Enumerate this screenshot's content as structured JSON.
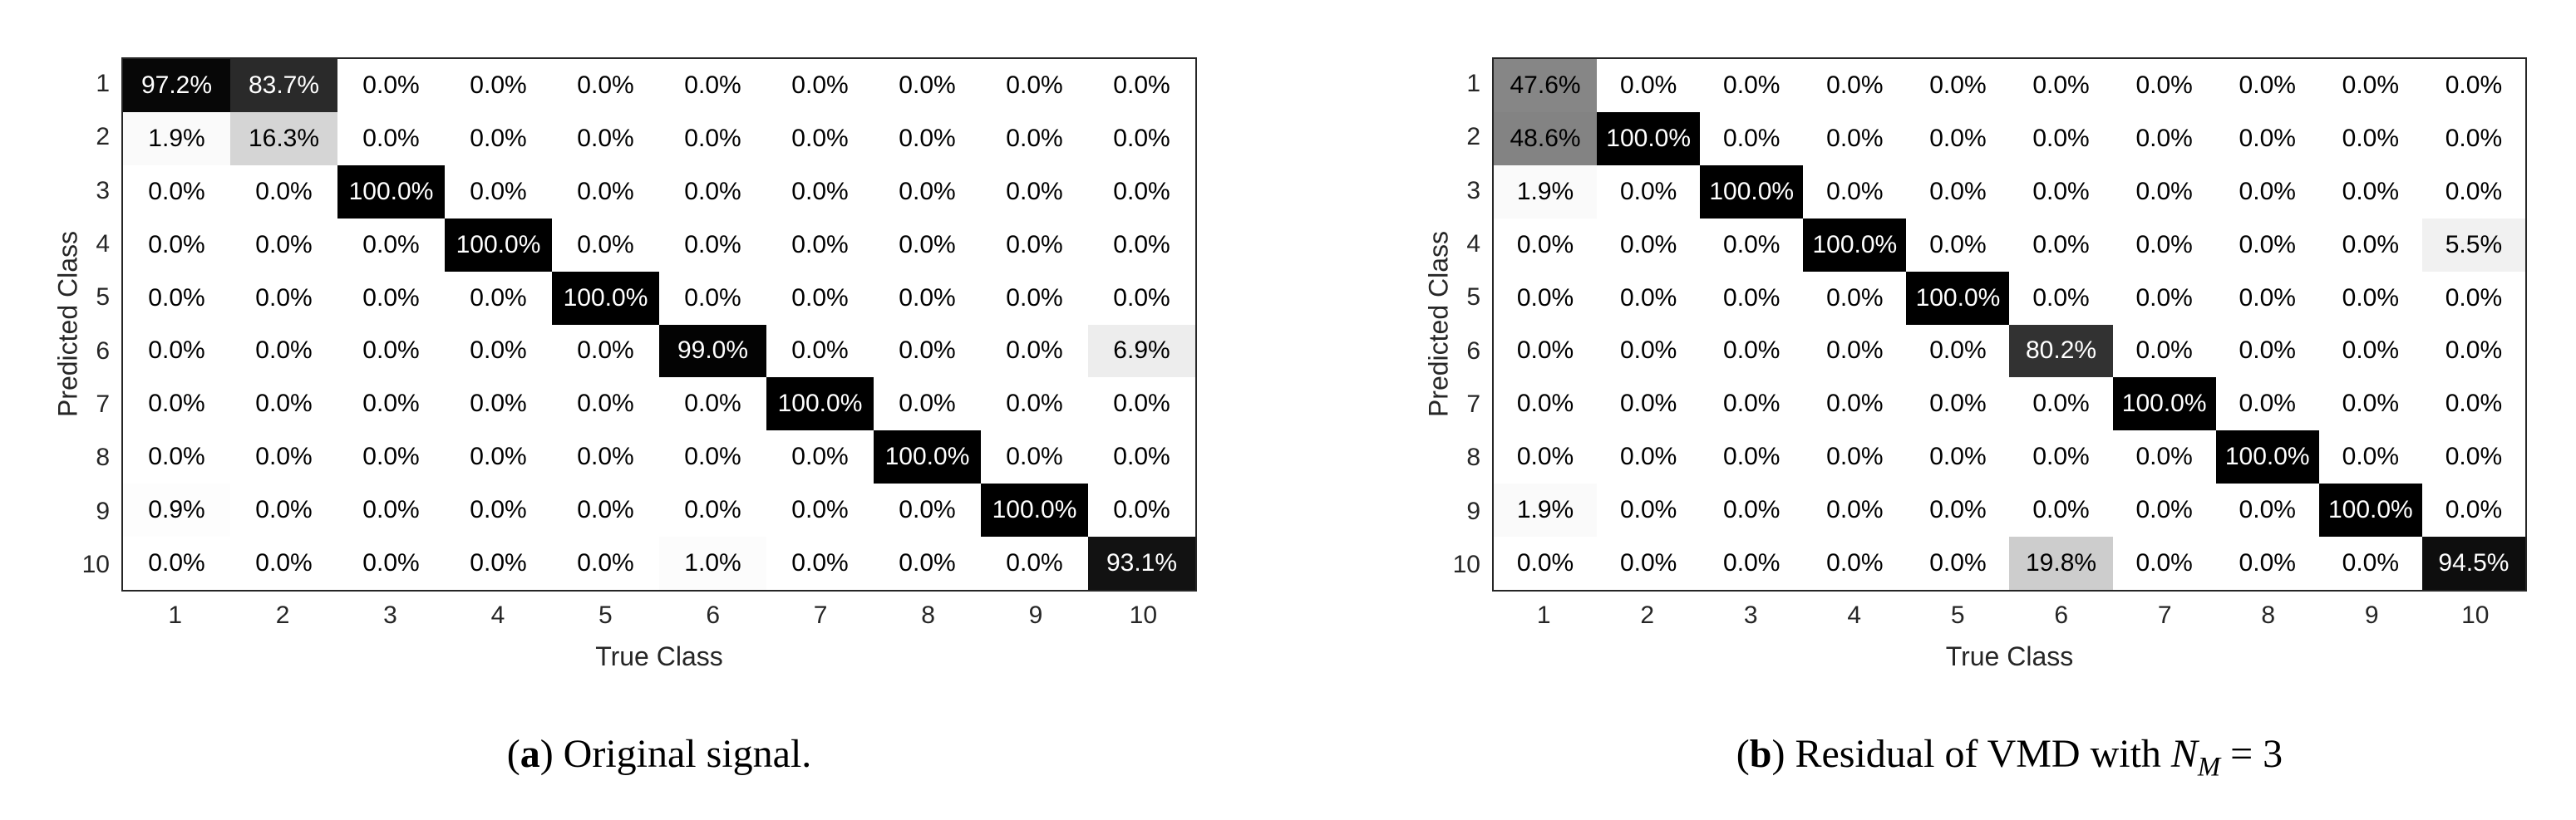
{
  "page": {
    "background": "#ffffff",
    "text_color": "#262626",
    "axes_border_color": "#262626"
  },
  "panels": [
    {
      "id": "a",
      "caption": {
        "paren_open": "(",
        "label": "a",
        "paren_close": ")",
        "text": " Original signal.",
        "math_var": "",
        "math_sub": "",
        "math_tail": ""
      }
    },
    {
      "id": "b",
      "caption": {
        "paren_open": "(",
        "label": "b",
        "paren_close": ")",
        "text": " Residual of VMD with ",
        "math_var": "N",
        "math_sub": "M",
        "math_tail": " = 3"
      }
    }
  ],
  "chart_data": [
    {
      "type": "heatmap",
      "subtype": "confusion-matrix",
      "caption": "(a) Original signal.",
      "xlabel": "True Class",
      "ylabel": "Predicted Class",
      "x_ticks": [
        "1",
        "2",
        "3",
        "4",
        "5",
        "6",
        "7",
        "8",
        "9",
        "10"
      ],
      "y_ticks": [
        "1",
        "2",
        "3",
        "4",
        "5",
        "6",
        "7",
        "8",
        "9",
        "10"
      ],
      "unit": "%",
      "value_format": "one-decimal-percent",
      "colormap": "grayscale: 0% = white (#ffffff), 100% = black (#000000); cell text black below 50%, white above",
      "grid": false,
      "legend": false,
      "values_percent": [
        [
          97.2,
          83.7,
          0.0,
          0.0,
          0.0,
          0.0,
          0.0,
          0.0,
          0.0,
          0.0
        ],
        [
          1.9,
          16.3,
          0.0,
          0.0,
          0.0,
          0.0,
          0.0,
          0.0,
          0.0,
          0.0
        ],
        [
          0.0,
          0.0,
          100.0,
          0.0,
          0.0,
          0.0,
          0.0,
          0.0,
          0.0,
          0.0
        ],
        [
          0.0,
          0.0,
          0.0,
          100.0,
          0.0,
          0.0,
          0.0,
          0.0,
          0.0,
          0.0
        ],
        [
          0.0,
          0.0,
          0.0,
          0.0,
          100.0,
          0.0,
          0.0,
          0.0,
          0.0,
          0.0
        ],
        [
          0.0,
          0.0,
          0.0,
          0.0,
          0.0,
          99.0,
          0.0,
          0.0,
          0.0,
          6.9
        ],
        [
          0.0,
          0.0,
          0.0,
          0.0,
          0.0,
          0.0,
          100.0,
          0.0,
          0.0,
          0.0
        ],
        [
          0.0,
          0.0,
          0.0,
          0.0,
          0.0,
          0.0,
          0.0,
          100.0,
          0.0,
          0.0
        ],
        [
          0.9,
          0.0,
          0.0,
          0.0,
          0.0,
          0.0,
          0.0,
          0.0,
          100.0,
          0.0
        ],
        [
          0.0,
          0.0,
          0.0,
          0.0,
          0.0,
          1.0,
          0.0,
          0.0,
          0.0,
          93.1
        ]
      ]
    },
    {
      "type": "heatmap",
      "subtype": "confusion-matrix",
      "caption": "(b) Residual of VMD with N_M = 3",
      "xlabel": "True Class",
      "ylabel": "Predicted Class",
      "x_ticks": [
        "1",
        "2",
        "3",
        "4",
        "5",
        "6",
        "7",
        "8",
        "9",
        "10"
      ],
      "y_ticks": [
        "1",
        "2",
        "3",
        "4",
        "5",
        "6",
        "7",
        "8",
        "9",
        "10"
      ],
      "unit": "%",
      "value_format": "one-decimal-percent",
      "colormap": "grayscale: 0% = white (#ffffff), 100% = black (#000000); cell text black below 50%, white above",
      "grid": false,
      "legend": false,
      "values_percent": [
        [
          47.6,
          0.0,
          0.0,
          0.0,
          0.0,
          0.0,
          0.0,
          0.0,
          0.0,
          0.0
        ],
        [
          48.6,
          100.0,
          0.0,
          0.0,
          0.0,
          0.0,
          0.0,
          0.0,
          0.0,
          0.0
        ],
        [
          1.9,
          0.0,
          100.0,
          0.0,
          0.0,
          0.0,
          0.0,
          0.0,
          0.0,
          0.0
        ],
        [
          0.0,
          0.0,
          0.0,
          100.0,
          0.0,
          0.0,
          0.0,
          0.0,
          0.0,
          5.5
        ],
        [
          0.0,
          0.0,
          0.0,
          0.0,
          100.0,
          0.0,
          0.0,
          0.0,
          0.0,
          0.0
        ],
        [
          0.0,
          0.0,
          0.0,
          0.0,
          0.0,
          80.2,
          0.0,
          0.0,
          0.0,
          0.0
        ],
        [
          0.0,
          0.0,
          0.0,
          0.0,
          0.0,
          0.0,
          100.0,
          0.0,
          0.0,
          0.0
        ],
        [
          0.0,
          0.0,
          0.0,
          0.0,
          0.0,
          0.0,
          0.0,
          100.0,
          0.0,
          0.0
        ],
        [
          1.9,
          0.0,
          0.0,
          0.0,
          0.0,
          0.0,
          0.0,
          0.0,
          100.0,
          0.0
        ],
        [
          0.0,
          0.0,
          0.0,
          0.0,
          0.0,
          19.8,
          0.0,
          0.0,
          0.0,
          94.5
        ]
      ]
    }
  ]
}
